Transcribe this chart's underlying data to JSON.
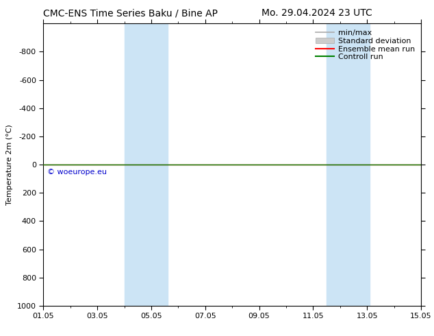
{
  "title_left": "CMC-ENS Time Series Baku / Bine AP",
  "title_right": "Mo. 29.04.2024 23 UTC",
  "ylabel": "Temperature 2m (°C)",
  "ylim_bottom": 1000,
  "ylim_top": -1000,
  "yticks": [
    -800,
    -600,
    -400,
    -200,
    0,
    200,
    400,
    600,
    800,
    1000
  ],
  "xlim": [
    1,
    15
  ],
  "xtick_positions": [
    1,
    3,
    5,
    7,
    9,
    11,
    13,
    15
  ],
  "xtick_labels": [
    "01.05",
    "03.05",
    "05.05",
    "07.05",
    "09.05",
    "11.05",
    "13.05",
    "15.05"
  ],
  "blue_bands": [
    {
      "start": 4.0,
      "end": 5.6
    },
    {
      "start": 11.5,
      "end": 13.1
    }
  ],
  "blue_band_color": "#cce4f5",
  "green_line_color": "#008000",
  "red_line_color": "#ff0000",
  "watermark_text": "© woeurope.eu",
  "watermark_color": "#0000cc",
  "legend_items": [
    "min/max",
    "Standard deviation",
    "Ensemble mean run",
    "Controll run"
  ],
  "background_color": "#ffffff",
  "title_fontsize": 10,
  "axis_fontsize": 8,
  "tick_fontsize": 8,
  "legend_fontsize": 8
}
